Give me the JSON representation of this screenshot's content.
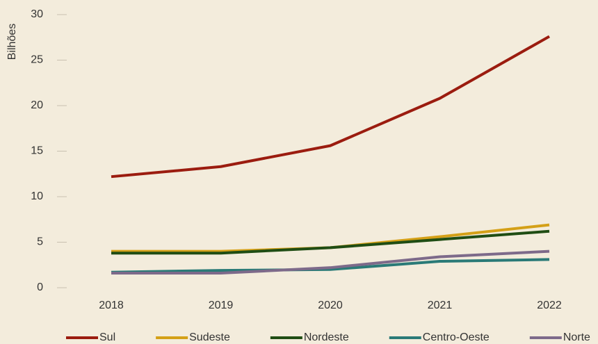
{
  "chart_data": {
    "type": "line",
    "y_label": "Bilhões",
    "categories": [
      "2018",
      "2019",
      "2020",
      "2021",
      "2022"
    ],
    "series": [
      {
        "name": "Sul",
        "color": "#9b1c0f",
        "values": [
          12.2,
          13.3,
          15.6,
          20.8,
          27.6
        ]
      },
      {
        "name": "Sudeste",
        "color": "#d4a017",
        "values": [
          4.0,
          4.0,
          4.4,
          5.6,
          6.9
        ]
      },
      {
        "name": "Nordeste",
        "color": "#1f4d14",
        "values": [
          3.8,
          3.8,
          4.4,
          5.3,
          6.2
        ]
      },
      {
        "name": "Centro-Oeste",
        "color": "#2a7a77",
        "values": [
          1.7,
          1.9,
          2.0,
          2.9,
          3.1
        ]
      },
      {
        "name": "Norte",
        "color": "#7d6a8a",
        "values": [
          1.6,
          1.6,
          2.2,
          3.4,
          4.0
        ]
      }
    ],
    "ylim": [
      0,
      30
    ],
    "yticks": [
      0,
      5,
      10,
      15,
      20,
      25,
      30
    ],
    "grid": false,
    "legend": "bottom"
  }
}
